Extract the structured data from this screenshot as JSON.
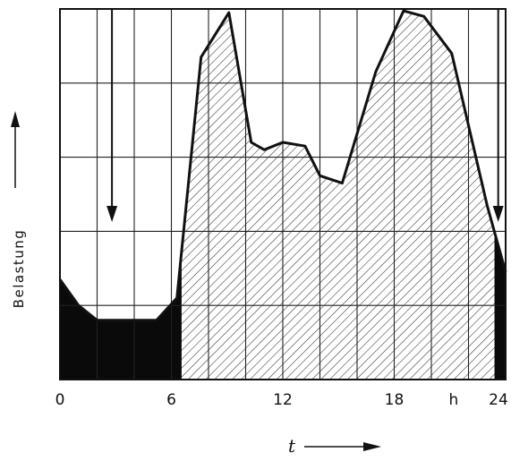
{
  "chart_data": {
    "type": "area",
    "title": "",
    "xlabel": "t",
    "ylabel": "Belastung",
    "xlim": [
      0,
      24
    ],
    "ylim": [
      0,
      10
    ],
    "x_ticks": [
      "0",
      "6",
      "12",
      "18",
      "24"
    ],
    "x_unit": "h",
    "grid": true,
    "series": [
      {
        "x": [
          0,
          1,
          2,
          4,
          5.2,
          6.3,
          7.6,
          9.1,
          10.3,
          11,
          12,
          13.2,
          14,
          15.2,
          17,
          18.5,
          19.6,
          21.1,
          23,
          24
        ],
        "values": [
          2.7,
          2,
          1.6,
          1.6,
          1.6,
          2.2,
          8.7,
          9.9,
          6.4,
          6.2,
          6.4,
          6.3,
          5.5,
          5.3,
          8.3,
          9.95,
          9.8,
          8.8,
          4.7,
          2.9
        ]
      }
    ],
    "filled_regions": [
      {
        "kind": "valley-fill",
        "x_range": [
          0,
          6.55
        ],
        "level": 4.25
      },
      {
        "kind": "valley-fill",
        "x_range": [
          23.4,
          24
        ],
        "level": 4.25
      }
    ],
    "annotations": [
      {
        "kind": "down-arrow",
        "x": 2.8,
        "target": 4.25
      },
      {
        "kind": "down-arrow",
        "x": 23.6,
        "target": 4.25
      }
    ]
  }
}
